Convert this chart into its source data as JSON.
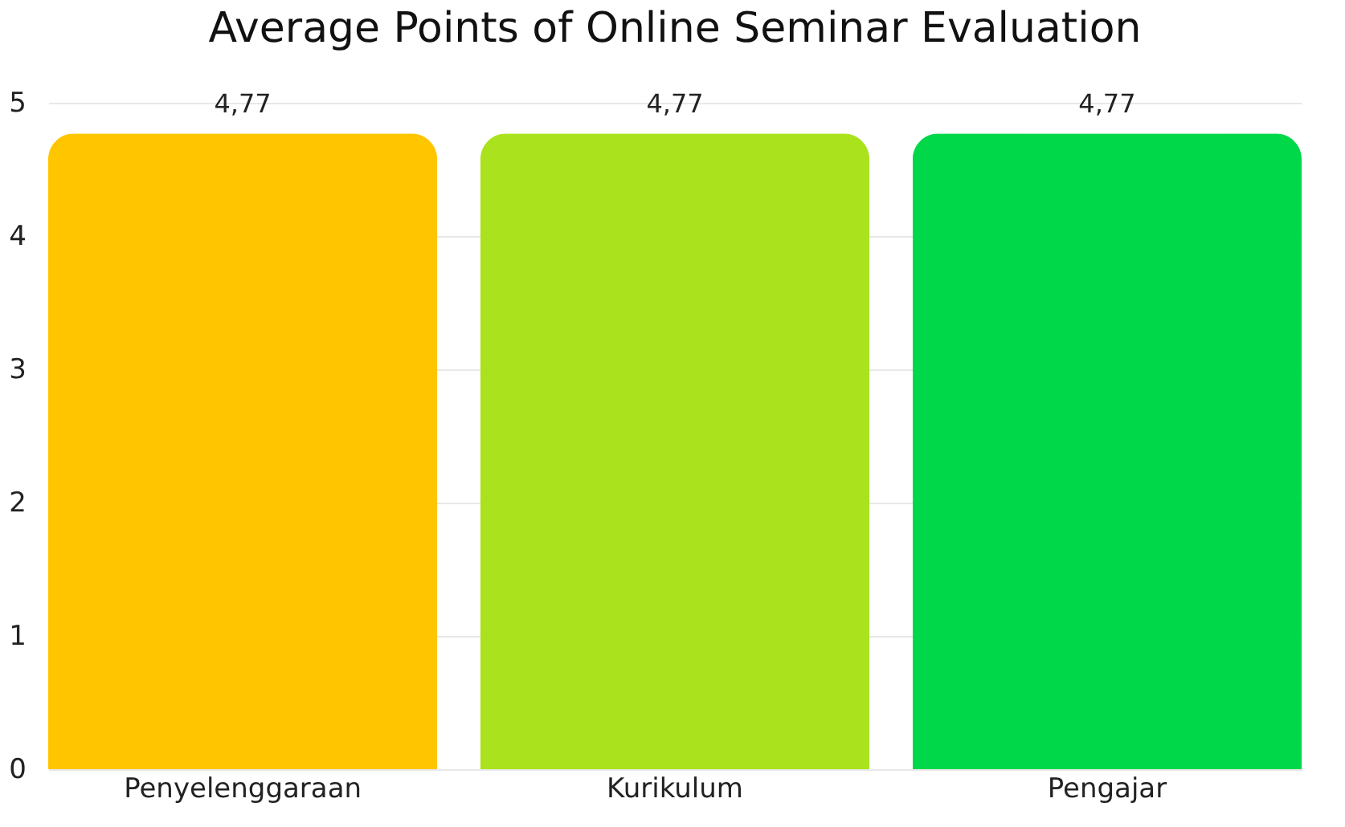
{
  "chart_data": {
    "type": "bar",
    "title": "Average Points of Online Seminar Evaluation",
    "categories": [
      "Penyelenggaraan",
      "Kurikulum",
      "Pengajar"
    ],
    "values": [
      4.77,
      4.77,
      4.77
    ],
    "colors": [
      "#ffc600",
      "#aae21e",
      "#00d84a"
    ],
    "value_labels": [
      "4,77",
      "4,77",
      "4,77"
    ],
    "ylim": [
      0,
      5
    ],
    "yticks": [
      0,
      1,
      2,
      3,
      4,
      5
    ],
    "grid": "y"
  }
}
